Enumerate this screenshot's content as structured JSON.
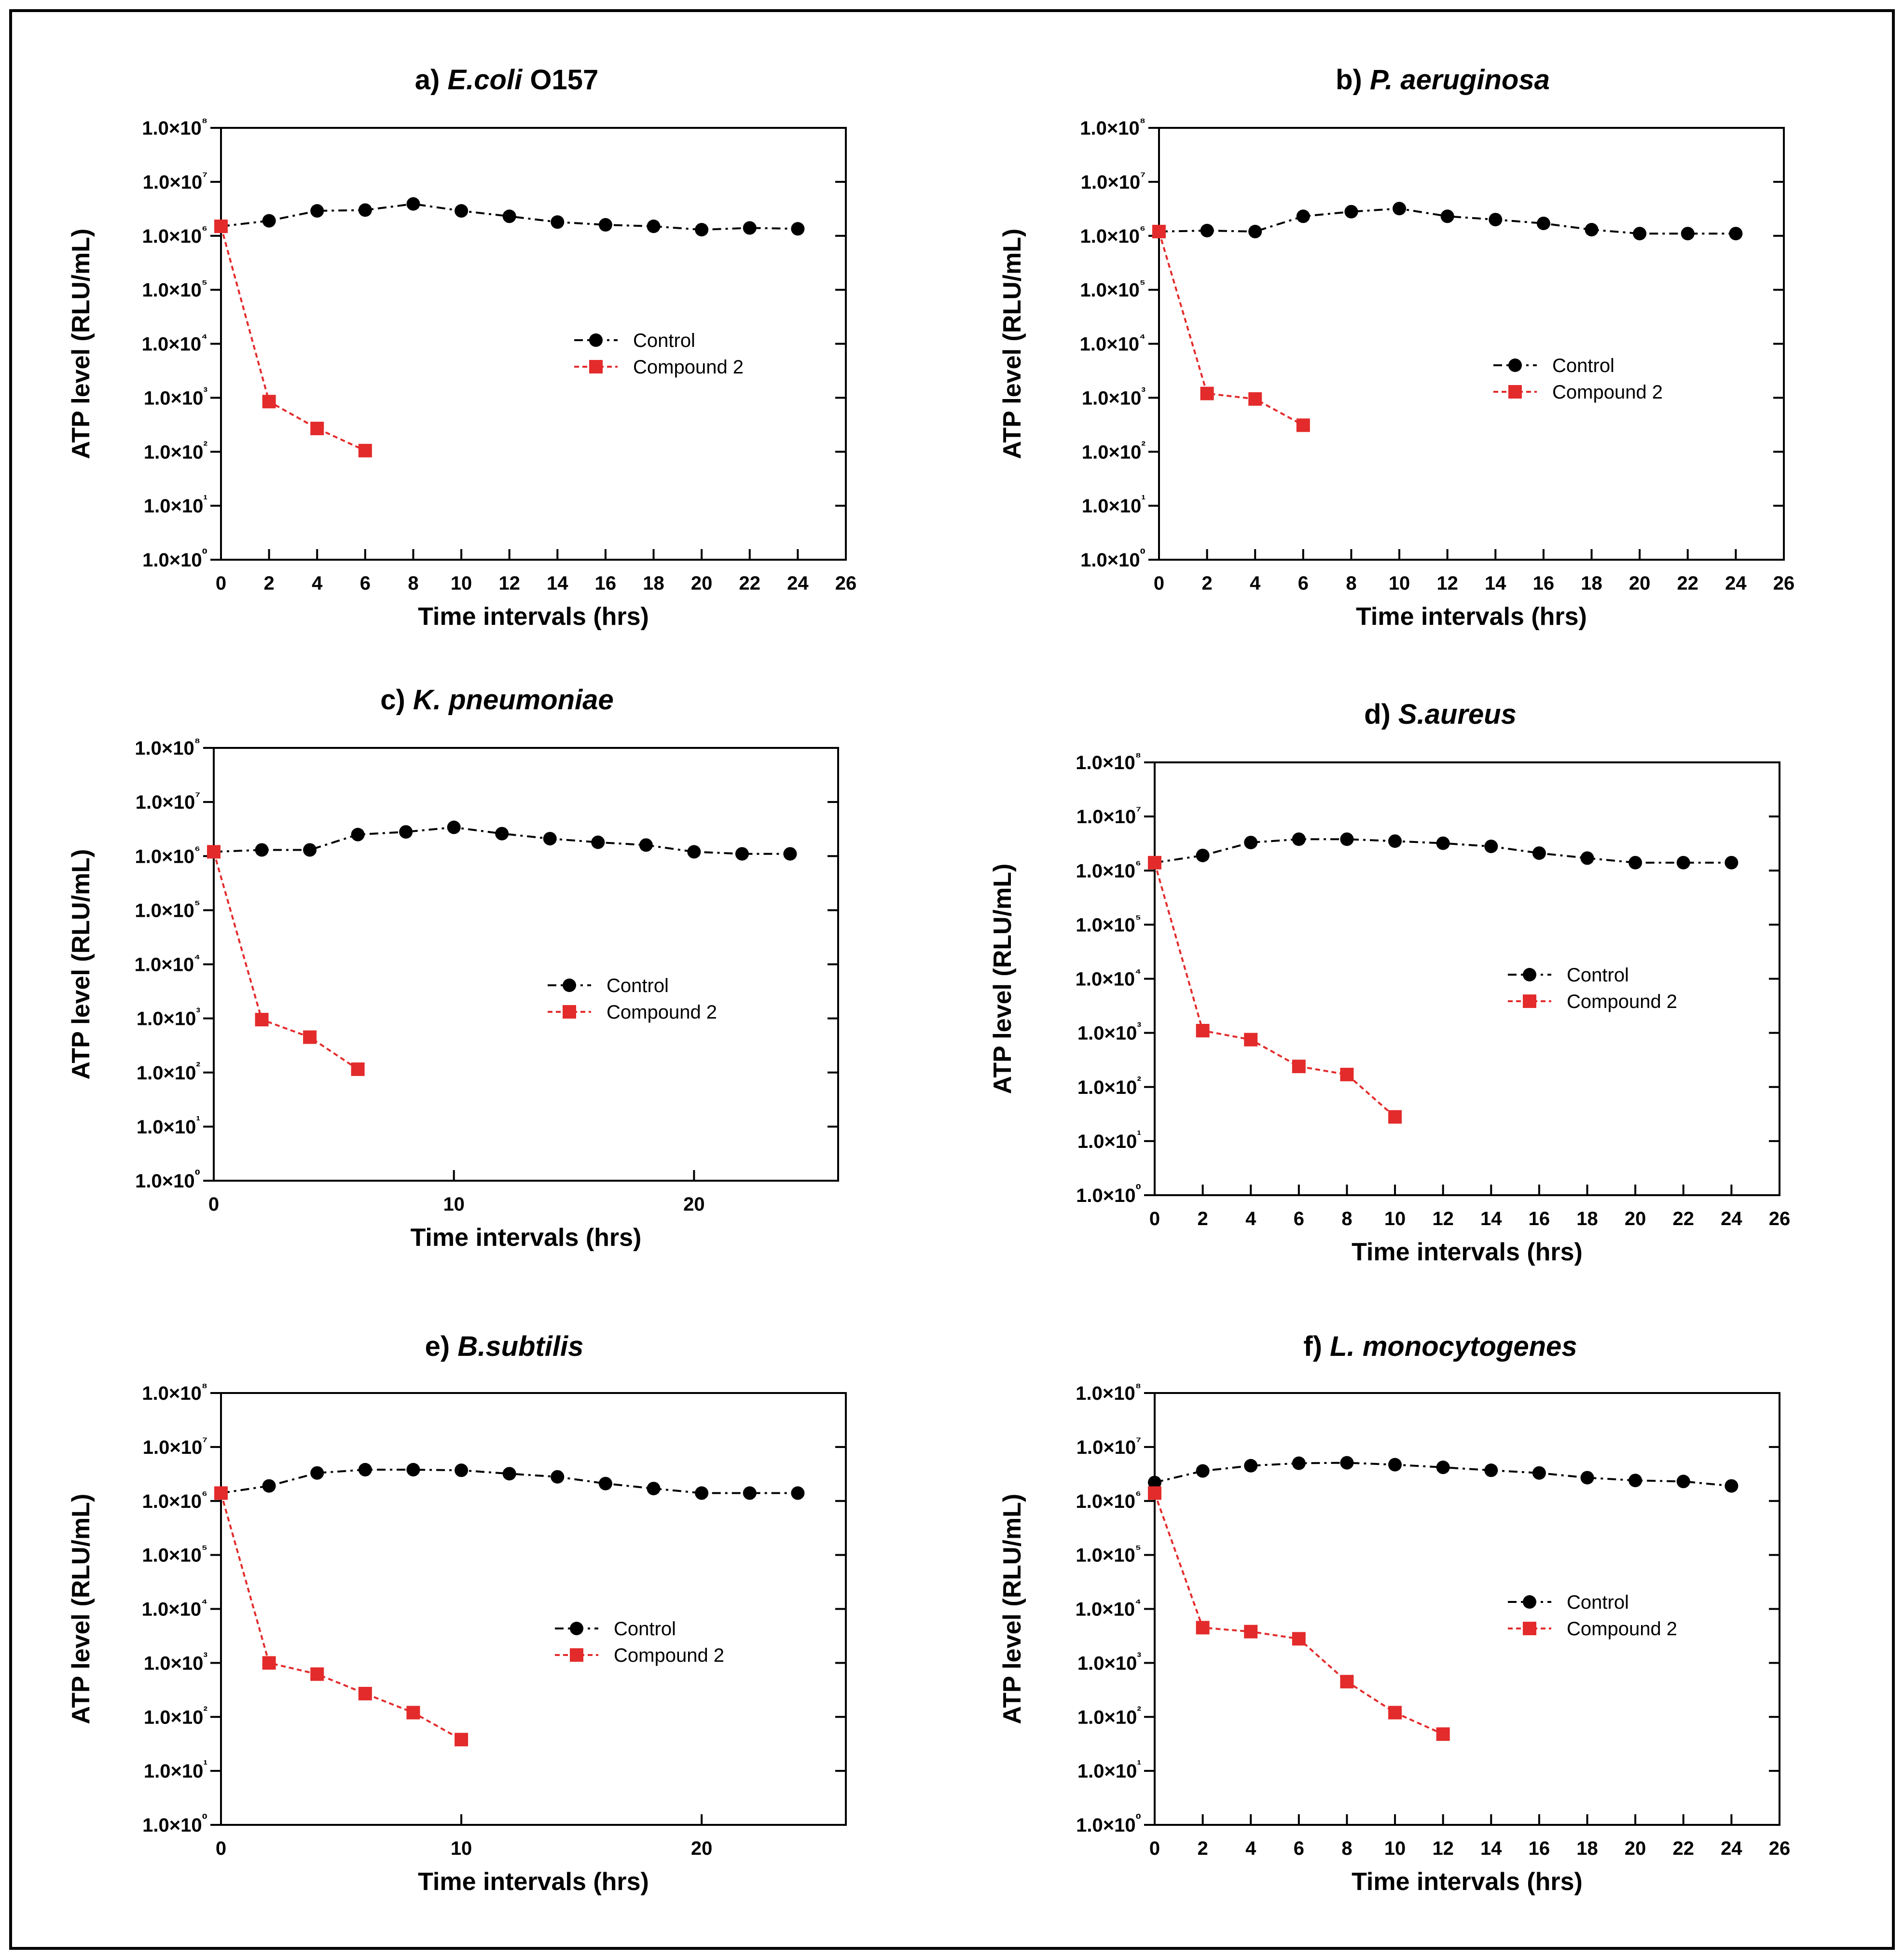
{
  "colors": {
    "control": "#000000",
    "compound": "#e32b2b",
    "frame": "#000000",
    "background": "#ffffff"
  },
  "legend": {
    "control_label": "Control",
    "compound_label": "Compound 2",
    "placement": "right-middle"
  },
  "chart_data": [
    {
      "type": "line",
      "title_prefix": "a)",
      "title_species": "E.coli",
      "title_suffix": " O157",
      "xlabel": "Time intervals (hrs)",
      "ylabel": "ATP level (RLU/mL)",
      "yscale": "log",
      "ylim": [
        1,
        100000000
      ],
      "xlim": [
        0,
        26
      ],
      "xticks": [
        0,
        2,
        4,
        6,
        8,
        10,
        12,
        14,
        16,
        18,
        20,
        22,
        24,
        26
      ],
      "yticks": [
        "1.0×10⁰",
        "1.0×10¹",
        "1.0×10²",
        "1.0×10³",
        "1.0×10⁴",
        "1.0×10⁵",
        "1.0×10⁶",
        "1.0×10⁷",
        "1.0×10⁸"
      ],
      "grid": false,
      "series": [
        {
          "name": "Control",
          "x": [
            0,
            2,
            4,
            6,
            8,
            10,
            12,
            14,
            16,
            18,
            20,
            22,
            24
          ],
          "y": [
            1500000,
            1900000,
            2900000,
            3000000,
            3900000,
            2900000,
            2300000,
            1800000,
            1600000,
            1500000,
            1300000,
            1400000,
            1350000
          ]
        },
        {
          "name": "Compound 2",
          "x": [
            0,
            2,
            4,
            6
          ],
          "y": [
            1500000,
            850,
            270,
            105
          ]
        }
      ]
    },
    {
      "type": "line",
      "title_prefix": "b)",
      "title_species": "P. aeruginosa",
      "title_suffix": "",
      "xlabel": "Time intervals (hrs)",
      "ylabel": "ATP level (RLU/mL)",
      "yscale": "log",
      "ylim": [
        1,
        100000000
      ],
      "xlim": [
        0,
        26
      ],
      "xticks": [
        0,
        2,
        4,
        6,
        8,
        10,
        12,
        14,
        16,
        18,
        20,
        22,
        24,
        26
      ],
      "yticks": [
        "1.0×10⁰",
        "1.0×10¹",
        "1.0×10²",
        "1.0×10³",
        "1.0×10⁴",
        "1.0×10⁵",
        "1.0×10⁶",
        "1.0×10⁷",
        "1.0×10⁸"
      ],
      "grid": false,
      "series": [
        {
          "name": "Control",
          "x": [
            0,
            2,
            4,
            6,
            8,
            10,
            12,
            14,
            16,
            18,
            20,
            22,
            24
          ],
          "y": [
            1200000,
            1250000,
            1200000,
            2300000,
            2800000,
            3200000,
            2300000,
            2000000,
            1700000,
            1300000,
            1100000,
            1100000,
            1100000
          ]
        },
        {
          "name": "Compound 2",
          "x": [
            0,
            2,
            4,
            6
          ],
          "y": [
            1200000,
            1200,
            950,
            310
          ]
        }
      ]
    },
    {
      "type": "line",
      "title_prefix": "c)",
      "title_species": "K. pneumoniae",
      "title_suffix": "",
      "xlabel": "Time intervals (hrs)",
      "ylabel": "ATP level (RLU/mL)",
      "yscale": "log",
      "ylim": [
        1,
        100000000
      ],
      "xlim": [
        0,
        26
      ],
      "xticks": [
        0,
        10,
        20
      ],
      "yticks": [
        "1.0×10⁰",
        "1.0×10¹",
        "1.0×10²",
        "1.0×10³",
        "1.0×10⁴",
        "1.0×10⁵",
        "1.0×10⁶",
        "1.0×10⁷",
        "1.0×10⁸"
      ],
      "grid": false,
      "series": [
        {
          "name": "Control",
          "x": [
            0,
            2,
            4,
            6,
            8,
            10,
            12,
            14,
            16,
            18,
            20,
            22,
            24
          ],
          "y": [
            1200000,
            1300000,
            1300000,
            2500000,
            2800000,
            3400000,
            2600000,
            2100000,
            1800000,
            1600000,
            1200000,
            1100000,
            1100000
          ]
        },
        {
          "name": "Compound 2",
          "x": [
            0,
            2,
            4,
            6
          ],
          "y": [
            1200000,
            950,
            450,
            115
          ]
        }
      ]
    },
    {
      "type": "line",
      "title_prefix": "d)",
      "title_species": "S.aureus",
      "title_suffix": "",
      "xlabel": "Time intervals (hrs)",
      "ylabel": "ATP level (RLU/mL)",
      "yscale": "log",
      "ylim": [
        1,
        100000000
      ],
      "xlim": [
        0,
        26
      ],
      "xticks": [
        0,
        2,
        4,
        6,
        8,
        10,
        12,
        14,
        16,
        18,
        20,
        22,
        24,
        26
      ],
      "yticks": [
        "1.0×10⁰",
        "1.0×10¹",
        "1.0×10²",
        "1.0×10³",
        "1.0×10⁴",
        "1.0×10⁵",
        "1.0×10⁶",
        "1.0×10⁷",
        "1.0×10⁸"
      ],
      "grid": false,
      "series": [
        {
          "name": "Control",
          "x": [
            0,
            2,
            4,
            6,
            8,
            10,
            12,
            14,
            16,
            18,
            20,
            22,
            24
          ],
          "y": [
            1400000,
            1900000,
            3300000,
            3800000,
            3800000,
            3500000,
            3200000,
            2800000,
            2100000,
            1700000,
            1400000,
            1400000,
            1400000
          ]
        },
        {
          "name": "Compound 2",
          "x": [
            0,
            2,
            4,
            6,
            8,
            10
          ],
          "y": [
            1400000,
            1100,
            750,
            240,
            170,
            28
          ]
        }
      ]
    },
    {
      "type": "line",
      "title_prefix": "e)",
      "title_species": "B.subtilis",
      "title_suffix": "",
      "xlabel": "Time intervals (hrs)",
      "ylabel": "ATP level (RLU/mL)",
      "yscale": "log",
      "ylim": [
        1,
        100000000
      ],
      "xlim": [
        0,
        26
      ],
      "xticks": [
        0,
        10,
        20
      ],
      "yticks": [
        "1.0×10⁰",
        "1.0×10¹",
        "1.0×10²",
        "1.0×10³",
        "1.0×10⁴",
        "1.0×10⁵",
        "1.0×10⁶",
        "1.0×10⁷",
        "1.0×10⁸"
      ],
      "grid": false,
      "series": [
        {
          "name": "Control",
          "x": [
            0,
            2,
            4,
            6,
            8,
            10,
            12,
            14,
            16,
            18,
            20,
            22,
            24
          ],
          "y": [
            1400000,
            1900000,
            3300000,
            3800000,
            3800000,
            3700000,
            3200000,
            2800000,
            2100000,
            1700000,
            1400000,
            1400000,
            1400000
          ]
        },
        {
          "name": "Compound 2",
          "x": [
            0,
            2,
            4,
            6,
            8,
            10
          ],
          "y": [
            1400000,
            1000,
            620,
            270,
            120,
            38
          ]
        }
      ]
    },
    {
      "type": "line",
      "title_prefix": "f)",
      "title_species": "L. monocytogenes",
      "title_suffix": "",
      "xlabel": "Time intervals (hrs)",
      "ylabel": "ATP level (RLU/mL)",
      "yscale": "log",
      "ylim": [
        1,
        100000000
      ],
      "xlim": [
        0,
        26
      ],
      "xticks": [
        0,
        2,
        4,
        6,
        8,
        10,
        12,
        14,
        16,
        18,
        20,
        22,
        24,
        26
      ],
      "yticks": [
        "1.0×10⁰",
        "1.0×10¹",
        "1.0×10²",
        "1.0×10³",
        "1.0×10⁴",
        "1.0×10⁵",
        "1.0×10⁶",
        "1.0×10⁷",
        "1.0×10⁸"
      ],
      "grid": false,
      "series": [
        {
          "name": "Control",
          "x": [
            0,
            2,
            4,
            6,
            8,
            10,
            12,
            14,
            16,
            18,
            20,
            22,
            24
          ],
          "y": [
            2200000,
            3600000,
            4500000,
            5000000,
            5100000,
            4700000,
            4200000,
            3700000,
            3300000,
            2700000,
            2400000,
            2300000,
            1900000
          ]
        },
        {
          "name": "Compound 2",
          "x": [
            0,
            2,
            4,
            6,
            8,
            10,
            12
          ],
          "y": [
            1400000,
            4500,
            3800,
            2800,
            450,
            120,
            48
          ]
        }
      ]
    }
  ]
}
